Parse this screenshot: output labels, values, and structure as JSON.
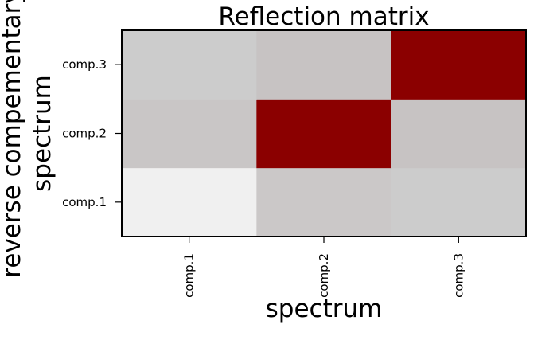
{
  "chart_data": {
    "type": "heatmap",
    "title": "Reflection matrix",
    "xlabel": "spectrum",
    "ylabel_lines": [
      "reverse compementary",
      "spectrum"
    ],
    "x_categories": [
      "comp.1",
      "comp.2",
      "comp.3"
    ],
    "y_categories": [
      "comp.1",
      "comp.2",
      "comp.3"
    ],
    "values": [
      [
        0.05,
        0.2,
        0.19
      ],
      [
        0.21,
        1.0,
        0.23
      ],
      [
        0.19,
        0.23,
        1.0
      ]
    ],
    "cell_colors": [
      [
        "#f0f0f0",
        "#cbc8c8",
        "#cccccc"
      ],
      [
        "#c9c6c6",
        "#8b0000",
        "#c7c3c3"
      ],
      [
        "#cccccc",
        "#c7c3c3",
        "#8b0000"
      ]
    ],
    "color_scale": {
      "low": "#f0f0f0",
      "high": "#8b0000"
    },
    "grid": false,
    "legend": "none"
  }
}
